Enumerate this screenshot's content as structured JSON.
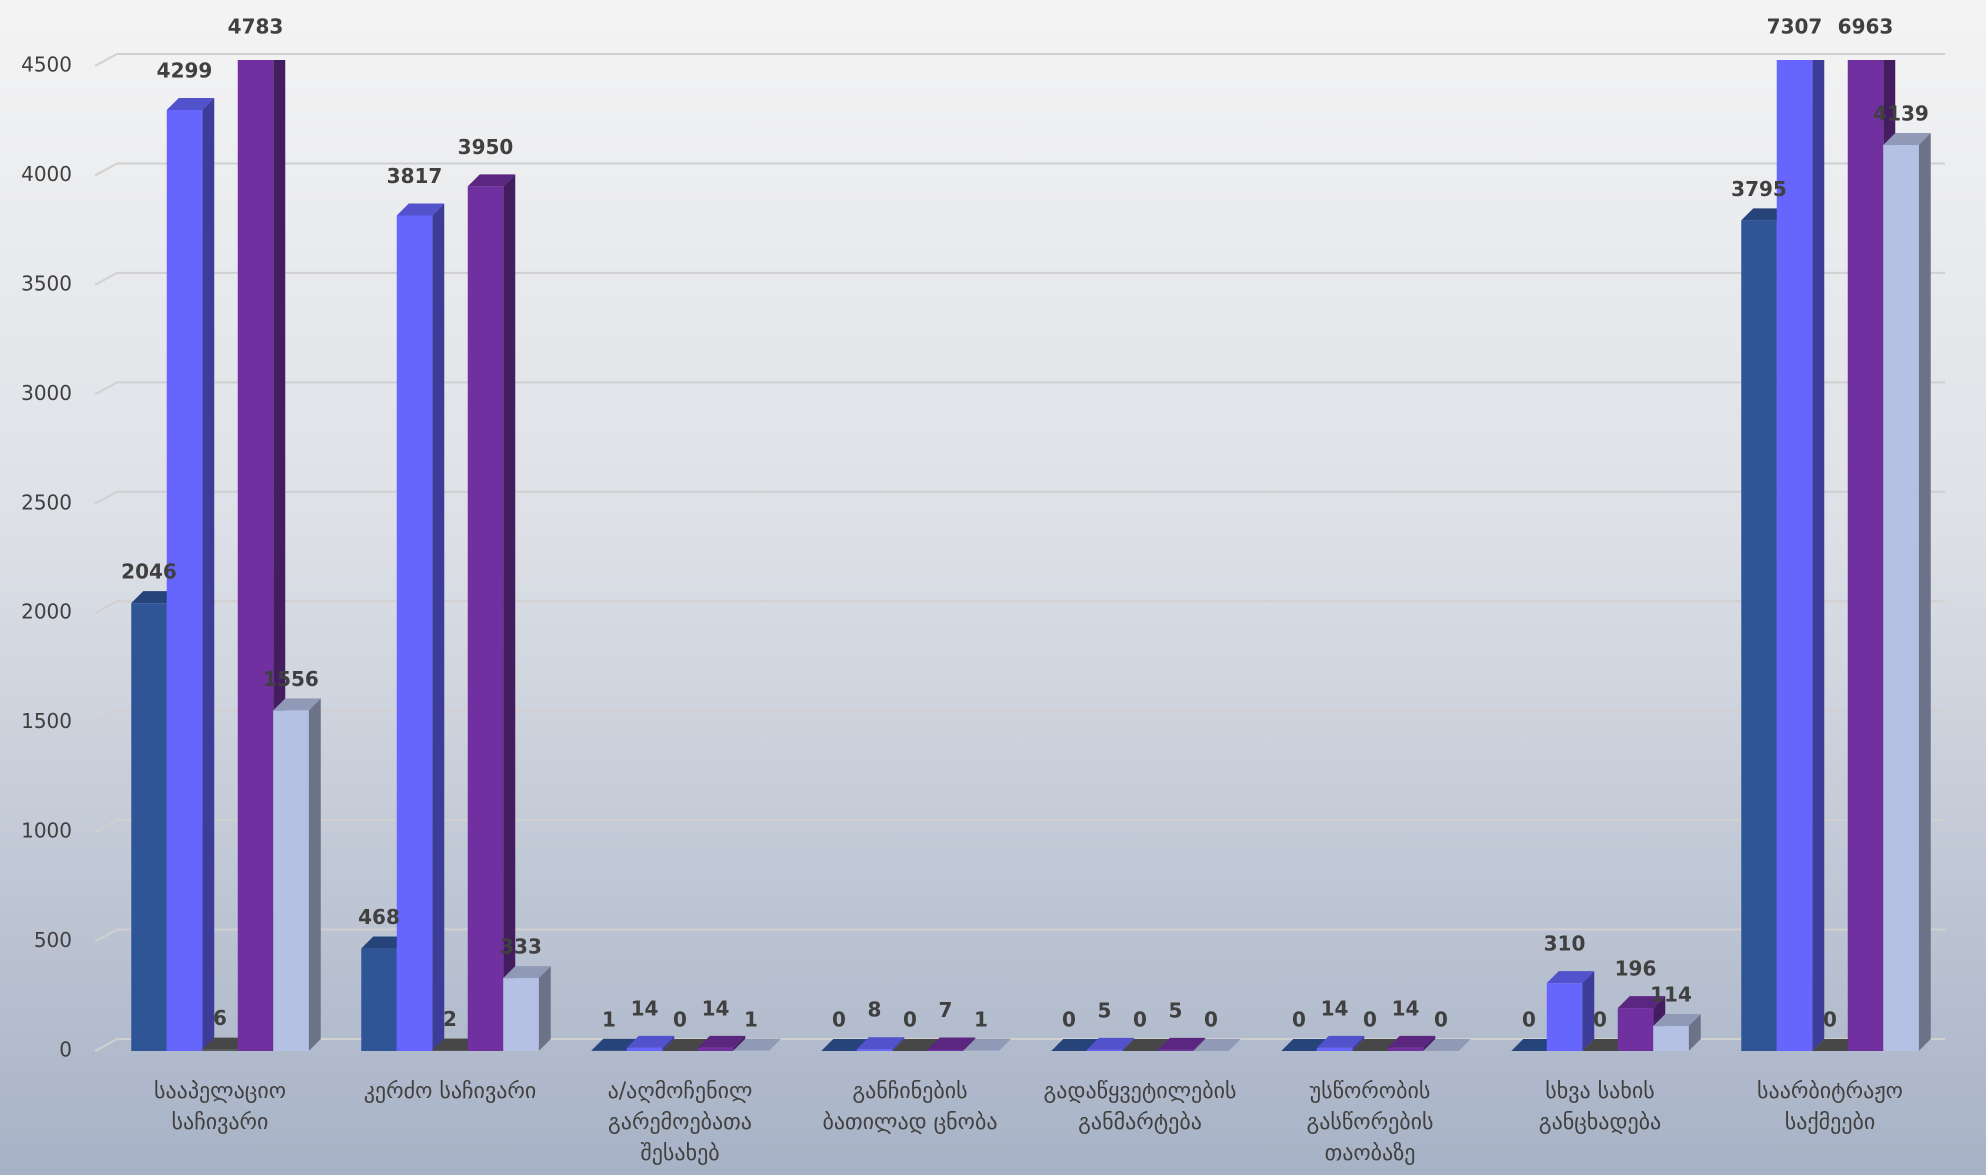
{
  "chart_data": {
    "type": "bar3d",
    "categories": [
      "სააპელაციო საჩივარი",
      "კერძო საჩივარი",
      "ა/აღმოჩენილ გარემოებათა შესახებ",
      "განჩინების ბათილად ცნობა",
      "გადაწყვეტილების განმარტება",
      "უსწორობის გასწორების თაობაზე",
      "სხვა სახის განცხადება",
      "საარბიტრაჟო საქმეები"
    ],
    "series": [
      {
        "color": "#2f5597",
        "values": [
          2046,
          468,
          1,
          0,
          0,
          0,
          0,
          3795
        ]
      },
      {
        "color": "#6666ff",
        "values": [
          4299,
          3817,
          14,
          8,
          5,
          14,
          310,
          7307
        ]
      },
      {
        "color": "#595959",
        "values": [
          6,
          2,
          0,
          0,
          0,
          0,
          0,
          0
        ]
      },
      {
        "color": "#7030a0",
        "values": [
          4783,
          3950,
          14,
          7,
          5,
          14,
          196,
          6963
        ]
      },
      {
        "color": "#b4c0e4",
        "values": [
          1556,
          333,
          1,
          1,
          0,
          0,
          114,
          4139
        ]
      }
    ],
    "ylim": [
      0,
      4500
    ],
    "yticks": [
      0,
      500,
      1000,
      1500,
      2000,
      2500,
      3000,
      3500,
      4000,
      4500
    ],
    "grid": true
  }
}
